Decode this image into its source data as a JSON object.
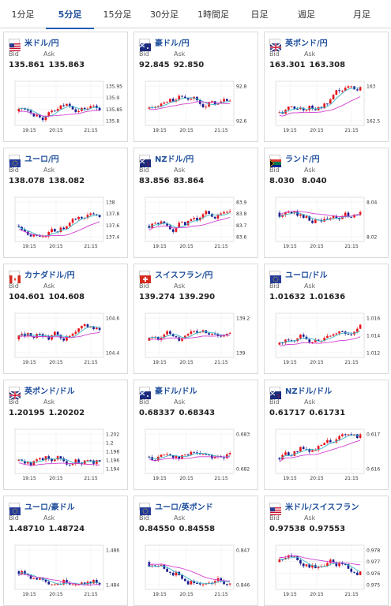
{
  "tabs": [
    {
      "label": "1分足",
      "active": false
    },
    {
      "label": "5分足",
      "active": true
    },
    {
      "label": "15分足",
      "active": false
    },
    {
      "label": "30分足",
      "active": false
    },
    {
      "label": "1時間足",
      "active": false
    },
    {
      "label": "日足",
      "active": false
    },
    {
      "label": "週足",
      "active": false
    },
    {
      "label": "月足",
      "active": false
    }
  ],
  "labels": {
    "bid": "Bid",
    "ask": "Ask"
  },
  "cards": [
    {
      "pair": "米ドル/円",
      "flag": "us-jp",
      "bid": "135.861",
      "ask": "135.863",
      "yticks": [
        "135.95",
        "135.9",
        "135.85",
        "135.8"
      ],
      "xticks": [
        "19:15",
        "20:15",
        "21:15"
      ]
    },
    {
      "pair": "豪ドル/円",
      "flag": "au-jp",
      "bid": "92.845",
      "ask": "92.850",
      "yticks": [
        "92.8",
        "92.6"
      ],
      "xticks": [
        "19:15",
        "20:15",
        "21:15"
      ]
    },
    {
      "pair": "英ポンド/円",
      "flag": "gb-jp",
      "bid": "163.301",
      "ask": "163.308",
      "yticks": [
        "163",
        "162.5"
      ],
      "xticks": [
        "19:15",
        "20:15",
        "21:15"
      ]
    },
    {
      "pair": "ユーロ/円",
      "flag": "eu-jp",
      "bid": "138.078",
      "ask": "138.082",
      "yticks": [
        "138",
        "137.8",
        "137.6",
        "137.4"
      ],
      "xticks": [
        "19:15",
        "20:15",
        "21:15"
      ]
    },
    {
      "pair": "NZドル/円",
      "flag": "nz-jp",
      "bid": "83.856",
      "ask": "83.864",
      "yticks": [
        "83.9",
        "83.8",
        "83.7",
        "83.6"
      ],
      "xticks": [
        "19:15",
        "20:15",
        "21:15"
      ]
    },
    {
      "pair": "ランド/円",
      "flag": "za-jp",
      "bid": "8.030",
      "ask": "8.040",
      "yticks": [
        "8.04",
        "8.02"
      ],
      "xticks": [
        "19:15",
        "20:15",
        "21:15"
      ]
    },
    {
      "pair": "カナダドル/円",
      "flag": "ca-jp",
      "bid": "104.601",
      "ask": "104.608",
      "yticks": [
        "104.6",
        "104.4"
      ],
      "xticks": [
        "19:15",
        "20:15",
        "21:15"
      ]
    },
    {
      "pair": "スイスフラン/円",
      "flag": "ch-jp",
      "bid": "139.274",
      "ask": "139.290",
      "yticks": [
        "139.2",
        "139"
      ],
      "xticks": [
        "19:15",
        "20:15",
        "21:15"
      ]
    },
    {
      "pair": "ユーロ/ドル",
      "flag": "eu-us",
      "bid": "1.01632",
      "ask": "1.01636",
      "yticks": [
        "1.016",
        "1.014",
        "1.012"
      ],
      "xticks": [
        "19:15",
        "20:15",
        "21:15"
      ]
    },
    {
      "pair": "英ポンド/ドル",
      "flag": "gb-us",
      "bid": "1.20195",
      "ask": "1.20202",
      "yticks": [
        "1.202",
        "1.2",
        "1.198",
        "1.196",
        "1.194"
      ],
      "xticks": [
        "19:15",
        "20:15",
        "21:15"
      ]
    },
    {
      "pair": "豪ドル/ドル",
      "flag": "au-us",
      "bid": "0.68337",
      "ask": "0.68343",
      "yticks": [
        "0.683",
        "0.682"
      ],
      "xticks": [
        "19:15",
        "20:15",
        "21:15"
      ]
    },
    {
      "pair": "NZドル/ドル",
      "flag": "nz-us",
      "bid": "0.61717",
      "ask": "0.61731",
      "yticks": [
        "0.617",
        "0.616"
      ],
      "xticks": [
        "19:15",
        "20:15",
        "21:15"
      ]
    },
    {
      "pair": "ユーロ/豪ドル",
      "flag": "eu-au",
      "bid": "1.48710",
      "ask": "1.48724",
      "yticks": [
        "1.486",
        "1.484"
      ],
      "xticks": [
        "19:15",
        "20:15",
        "21:15"
      ]
    },
    {
      "pair": "ユーロ/英ポンド",
      "flag": "eu-gb",
      "bid": "0.84550",
      "ask": "0.84558",
      "yticks": [
        "0.847",
        "0.846"
      ],
      "xticks": [
        "19:15",
        "20:15",
        "21:15"
      ]
    },
    {
      "pair": "米ドル/スイスフラン",
      "flag": "us-ch",
      "bid": "0.97538",
      "ask": "0.97553",
      "yticks": [
        "0.978",
        "0.977",
        "0.976",
        "0.975"
      ],
      "xticks": [
        "19:15",
        "20:15",
        "21:15"
      ]
    }
  ],
  "colors": {
    "up": "#e8141b",
    "down": "#1b1c8f",
    "ma_short": "#3ab7c7",
    "ma_long": "#d13fd1",
    "accent": "#1f4f9c"
  }
}
